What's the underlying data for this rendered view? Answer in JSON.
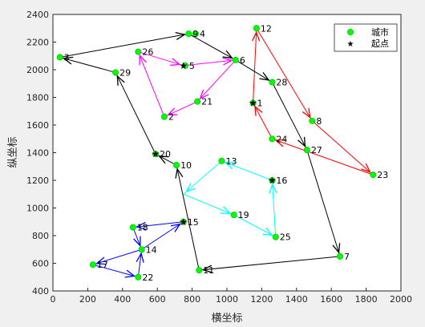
{
  "chart_data": {
    "type": "scatter",
    "xlabel": "横坐标",
    "ylabel": "纵坐标",
    "xlim": [
      0,
      2000
    ],
    "ylim": [
      400,
      2400
    ],
    "xticks": [
      "0",
      "200",
      "400",
      "600",
      "800",
      "1000",
      "1200",
      "1400",
      "1600",
      "1800",
      "2000"
    ],
    "yticks": [
      "400",
      "600",
      "800",
      "1000",
      "1200",
      "1400",
      "1600",
      "1800",
      "2000",
      "2200",
      "2400"
    ],
    "grid": false,
    "legend": {
      "position": "top-right",
      "entries": [
        {
          "label": "城市",
          "marker": "circle",
          "color": "#00ff00"
        },
        {
          "label": "起点",
          "marker": "star",
          "color": "#000000"
        }
      ]
    },
    "cities": [
      {
        "id": "1",
        "x": 1150,
        "y": 1760
      },
      {
        "id": "2",
        "x": 640,
        "y": 1660
      },
      {
        "id": "3",
        "x": 40,
        "y": 2090
      },
      {
        "id": "4",
        "x": 820,
        "y": 2260
      },
      {
        "id": "5",
        "x": 760,
        "y": 2030
      },
      {
        "id": "6",
        "x": 1050,
        "y": 2070
      },
      {
        "id": "7",
        "x": 1650,
        "y": 650
      },
      {
        "id": "8",
        "x": 1490,
        "y": 1630
      },
      {
        "id": "9",
        "x": 780,
        "y": 2260
      },
      {
        "id": "10",
        "x": 710,
        "y": 1310
      },
      {
        "id": "11",
        "x": 840,
        "y": 550
      },
      {
        "id": "12",
        "x": 1170,
        "y": 2300
      },
      {
        "id": "13",
        "x": 970,
        "y": 1340
      },
      {
        "id": "14",
        "x": 510,
        "y": 700
      },
      {
        "id": "15",
        "x": 750,
        "y": 900
      },
      {
        "id": "16",
        "x": 1260,
        "y": 1200
      },
      {
        "id": "17",
        "x": 230,
        "y": 590
      },
      {
        "id": "18",
        "x": 460,
        "y": 860
      },
      {
        "id": "19",
        "x": 1040,
        "y": 950
      },
      {
        "id": "20",
        "x": 590,
        "y": 1390
      },
      {
        "id": "21",
        "x": 830,
        "y": 1770
      },
      {
        "id": "22",
        "x": 490,
        "y": 500
      },
      {
        "id": "23",
        "x": 1840,
        "y": 1240
      },
      {
        "id": "24",
        "x": 1260,
        "y": 1500
      },
      {
        "id": "25",
        "x": 1280,
        "y": 790
      },
      {
        "id": "26",
        "x": 490,
        "y": 2130
      },
      {
        "id": "27",
        "x": 1460,
        "y": 1420
      },
      {
        "id": "28",
        "x": 1260,
        "y": 1910
      },
      {
        "id": "29",
        "x": 360,
        "y": 1980
      }
    ],
    "start_points": [
      {
        "x": 1150,
        "y": 1760
      },
      {
        "x": 750,
        "y": 2030
      },
      {
        "x": 590,
        "y": 1390
      },
      {
        "x": 1260,
        "y": 1200
      },
      {
        "x": 750,
        "y": 900
      }
    ],
    "routes": [
      {
        "color": "#ff0000",
        "points": [
          [
            1150,
            1760
          ],
          [
            1170,
            2300
          ],
          [
            1490,
            1630
          ],
          [
            1840,
            1240
          ],
          [
            1260,
            1500
          ],
          [
            1150,
            1760
          ]
        ]
      },
      {
        "color": "#ff00ff",
        "points": [
          [
            750,
            2030
          ],
          [
            1050,
            2070
          ],
          [
            830,
            1770
          ],
          [
            640,
            1660
          ],
          [
            490,
            2130
          ],
          [
            750,
            2030
          ]
        ]
      },
      {
        "color": "#000000",
        "points": [
          [
            590,
            1390
          ],
          [
            360,
            1980
          ],
          [
            40,
            2090
          ],
          [
            780,
            2260
          ],
          [
            1050,
            2070
          ],
          [
            1260,
            1910
          ],
          [
            1460,
            1420
          ],
          [
            1650,
            650
          ],
          [
            840,
            550
          ],
          [
            710,
            1310
          ],
          [
            590,
            1390
          ]
        ]
      },
      {
        "color": "#00ffff",
        "points": [
          [
            1260,
            1200
          ],
          [
            970,
            1340
          ],
          [
            750,
            1100
          ],
          [
            1040,
            950
          ],
          [
            1280,
            790
          ],
          [
            1260,
            1200
          ]
        ]
      },
      {
        "color": "#0000ff",
        "points": [
          [
            750,
            900
          ],
          [
            460,
            860
          ],
          [
            510,
            700
          ],
          [
            230,
            590
          ],
          [
            490,
            500
          ],
          [
            510,
            700
          ],
          [
            750,
            900
          ]
        ]
      }
    ]
  }
}
